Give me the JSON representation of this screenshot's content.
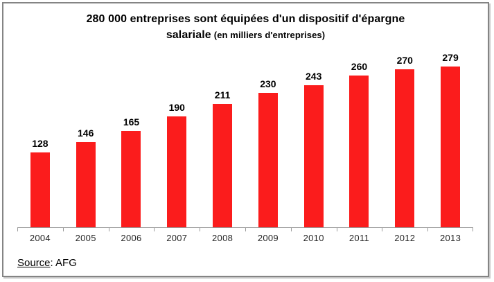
{
  "title": {
    "line1": "280 000 entreprises sont équipées d'un dispositif d'épargne",
    "line2_bold": "salariale",
    "unit_note": "(en milliers d'entreprises)"
  },
  "source": {
    "label": "Source",
    "separator": ": ",
    "value": "AFG"
  },
  "chart_data": {
    "type": "bar",
    "title": "280 000 entreprises sont équipées d'un dispositif d'épargne salariale",
    "subtitle": "(en milliers d'entreprises)",
    "categories": [
      "2004",
      "2005",
      "2006",
      "2007",
      "2008",
      "2009",
      "2010",
      "2011",
      "2012",
      "2013"
    ],
    "values": [
      128,
      146,
      165,
      190,
      211,
      230,
      243,
      260,
      270,
      279
    ],
    "ylim": [
      0,
      300
    ],
    "xlabel": "",
    "ylabel": "",
    "grid": false,
    "legend": false,
    "data_labels": true,
    "bar_color": "#fb1c1c",
    "axis_color": "#9a9a9a",
    "value_label_color": "#000000",
    "tick_label_color": "#262626",
    "source": "AFG"
  }
}
